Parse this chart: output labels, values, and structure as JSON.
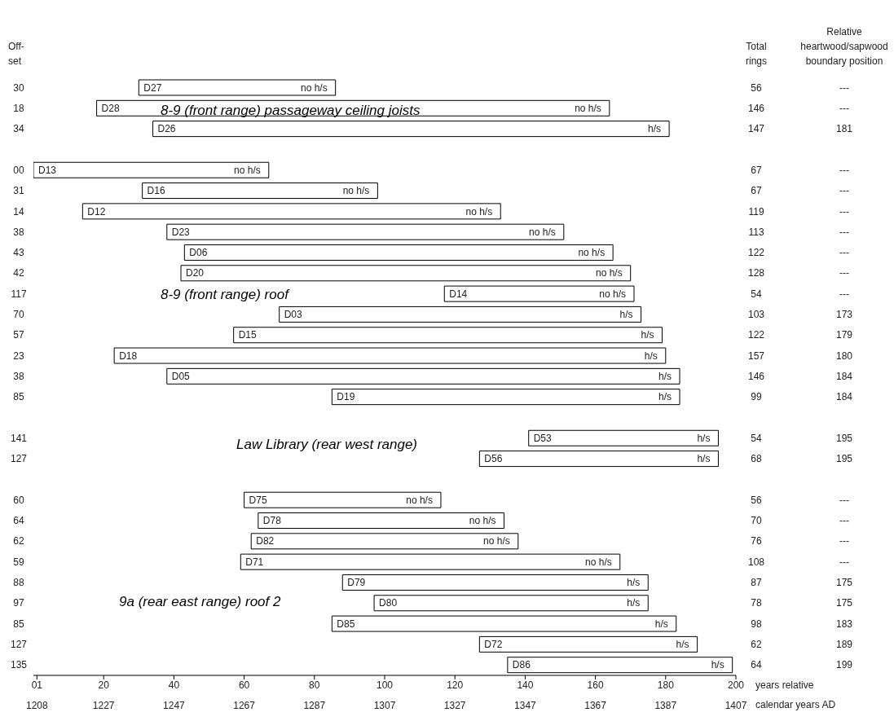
{
  "chart_data": {
    "type": "bar",
    "orientation": "horizontal",
    "ylabel": "Off-set",
    "y2label": "Total rings",
    "xlabel": "years relative",
    "x2label": "calendar years AD",
    "categories": [
      "D27",
      "D28",
      "D26",
      null,
      "D13",
      "D16",
      "D12",
      "D23",
      "D06",
      "D20",
      "D14",
      "D03",
      "D15",
      "D18",
      "D05",
      "D19",
      null,
      "D53",
      "D56",
      null,
      "D75",
      "D78",
      "D82",
      "D71",
      "D79",
      "D80",
      "D85",
      "D72",
      "D86"
    ],
    "base": [
      30,
      18,
      34,
      null,
      0,
      31,
      14,
      38,
      43,
      42,
      117,
      70,
      57,
      23,
      38,
      85,
      null,
      141,
      127,
      null,
      60,
      64,
      62,
      59,
      88,
      97,
      85,
      127,
      135
    ],
    "values": [
      56,
      146,
      147,
      null,
      67,
      67,
      119,
      113,
      122,
      128,
      54,
      103,
      122,
      157,
      146,
      99,
      null,
      54,
      68,
      null,
      56,
      70,
      76,
      108,
      87,
      78,
      98,
      62,
      64
    ],
    "color": "#ffffff",
    "data_labels": true,
    "grid": false,
    "legend": false,
    "xlim": [
      0,
      200
    ],
    "xticks": [
      {
        "value": 1,
        "label": "01"
      },
      20,
      40,
      60,
      80,
      100,
      120,
      140,
      160,
      180,
      200
    ],
    "x2lim": [
      1207,
      1407
    ],
    "x2ticks": [
      1208,
      1227,
      1247,
      1267,
      1287,
      1307,
      1327,
      1347,
      1367,
      1387,
      1407
    ],
    "annotations": [
      "Relative heartwood/sapwood boundary position",
      "8-9 (front range) passageway ceiling joists",
      "8-9 (front range) roof",
      "Law Library (rear west range)",
      "9a (rear east range) roof 2",
      "---",
      "---",
      "181",
      "---",
      "---",
      "---",
      "---",
      "---",
      "---",
      "---",
      "173",
      "179",
      "180",
      "184",
      "184",
      "195",
      "195",
      "---",
      "---",
      "---",
      "---",
      "175",
      "175",
      "183",
      "189",
      "199",
      "30",
      "18",
      "34",
      "00",
      "31",
      "14",
      "38",
      "43",
      "42",
      "117",
      "70",
      "57",
      "23",
      "38",
      "85",
      "141",
      "127",
      "60",
      "64",
      "62",
      "59",
      "88",
      "97",
      "85",
      "127",
      "135",
      {
        "text": "no h/s",
        "x": 86,
        "y": "D27"
      },
      {
        "text": "no h/s",
        "x": 164,
        "y": "D28"
      },
      {
        "text": "h/s",
        "x": 181,
        "y": "D26"
      },
      {
        "text": "no h/s",
        "x": 67,
        "y": "D13"
      },
      {
        "text": "no h/s",
        "x": 98,
        "y": "D16"
      },
      {
        "text": "no h/s",
        "x": 133,
        "y": "D12"
      },
      {
        "text": "no h/s",
        "x": 151,
        "y": "D23"
      },
      {
        "text": "no h/s",
        "x": 165,
        "y": "D06"
      },
      {
        "text": "no h/s",
        "x": 170,
        "y": "D20"
      },
      {
        "text": "no h/s",
        "x": 171,
        "y": "D14"
      },
      {
        "text": "h/s",
        "x": 173,
        "y": "D03"
      },
      {
        "text": "h/s",
        "x": 179,
        "y": "D15"
      },
      {
        "text": "h/s",
        "x": 180,
        "y": "D18"
      },
      {
        "text": "h/s",
        "x": 184,
        "y": "D05"
      },
      {
        "text": "h/s",
        "x": 184,
        "y": "D19"
      },
      {
        "text": "h/s",
        "x": 195,
        "y": "D53"
      },
      {
        "text": "h/s",
        "x": 195,
        "y": "D56"
      },
      {
        "text": "no h/s",
        "x": 116,
        "y": "D75"
      },
      {
        "text": "no h/s",
        "x": 134,
        "y": "D78"
      },
      {
        "text": "no h/s",
        "x": 138,
        "y": "D82"
      },
      {
        "text": "no h/s",
        "x": 167,
        "y": "D71"
      },
      {
        "text": "h/s",
        "x": 175,
        "y": "D79"
      },
      {
        "text": "h/s",
        "x": 175,
        "y": "D80"
      },
      {
        "text": "h/s",
        "x": 183,
        "y": "D85"
      },
      {
        "text": "h/s",
        "x": 189,
        "y": "D72"
      },
      {
        "text": "h/s",
        "x": 199,
        "y": "D86"
      }
    ]
  }
}
